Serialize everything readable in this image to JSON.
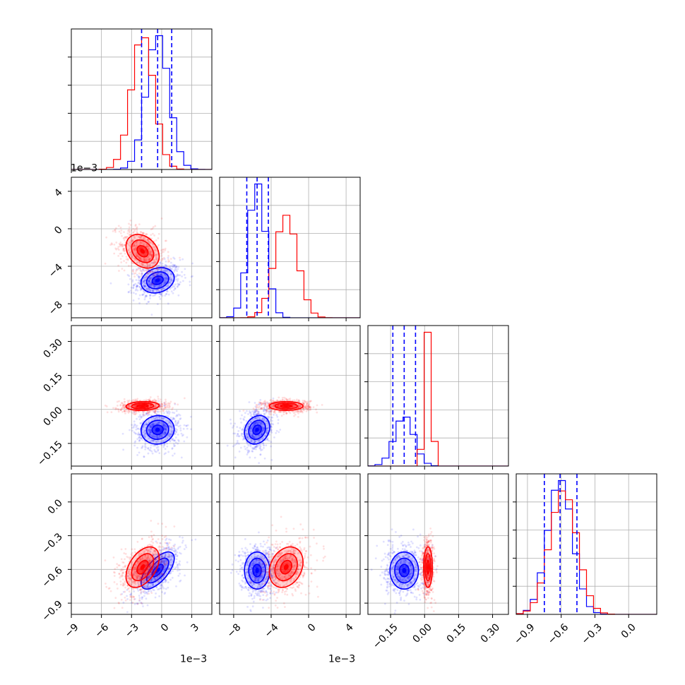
{
  "chart_data": {
    "type": "corner",
    "n_params": 4,
    "series": [
      {
        "name": "",
        "color": "#0000ff",
        "means": [
          -0.0004,
          -0.0055,
          -0.09,
          -0.61
        ],
        "stds": [
          0.0011,
          0.0009,
          0.042,
          0.11
        ]
      },
      {
        "name": "",
        "color": "#ff0000",
        "means": [
          -0.0019,
          -0.0024,
          0.015,
          -0.58
        ],
        "stds": [
          0.0011,
          0.0012,
          0.013,
          0.12
        ]
      }
    ],
    "correlations": {
      "0-1": [
        0.2,
        -0.3
      ],
      "0-2": [
        0.05,
        0.1
      ],
      "0-3": [
        0.65,
        0.45
      ],
      "1-2": [
        0.2,
        0.0
      ],
      "1-3": [
        0.0,
        0.25
      ],
      "2-3": [
        0.0,
        0.0
      ]
    },
    "quantiles_blue": [
      [
        -0.002,
        -0.0004,
        0.001
      ],
      [
        -0.0066,
        -0.0055,
        -0.0043
      ],
      [
        -0.14,
        -0.09,
        -0.04
      ],
      [
        -0.75,
        -0.61,
        -0.46
      ]
    ],
    "ranges": [
      [
        -0.009,
        0.005
      ],
      [
        -0.0095,
        0.0055
      ],
      [
        -0.25,
        0.37
      ],
      [
        -1.0,
        0.25
      ]
    ],
    "x_ticks": [
      {
        "values": [
          -0.009,
          -0.006,
          -0.003,
          0.0,
          0.003
        ],
        "labels": [
          "−9",
          "−6",
          "−3",
          "0",
          "3"
        ]
      },
      {
        "values": [
          -0.008,
          -0.004,
          0.0,
          0.004
        ],
        "labels": [
          "−8",
          "−4",
          "0",
          "4"
        ]
      },
      {
        "values": [
          -0.15,
          0.0,
          0.15,
          0.3
        ],
        "labels": [
          "−0.15",
          "0.00",
          "0.15",
          "0.30"
        ]
      },
      {
        "values": [
          -0.9,
          -0.6,
          -0.3,
          0.0
        ],
        "labels": [
          "−0.9",
          "−0.6",
          "−0.3",
          "0.0"
        ]
      }
    ],
    "y_ticks": [
      null,
      {
        "values": [
          -0.008,
          -0.004,
          0.0,
          0.004
        ],
        "labels": [
          "−8",
          "−4",
          "0",
          "4"
        ]
      },
      {
        "values": [
          -0.15,
          0.0,
          0.15,
          0.3
        ],
        "labels": [
          "−0.15",
          "0.00",
          "0.15",
          "0.30"
        ]
      },
      {
        "values": [
          -0.9,
          -0.6,
          -0.3,
          0.0
        ],
        "labels": [
          "−0.9",
          "−0.6",
          "−0.3",
          "0.0"
        ]
      }
    ],
    "offset_labels": {
      "x0": "1e−3",
      "x1": "1e−3",
      "y1": "1e−3"
    },
    "grid": true,
    "contour_levels": [
      0.5,
      1.0,
      1.5
    ]
  }
}
